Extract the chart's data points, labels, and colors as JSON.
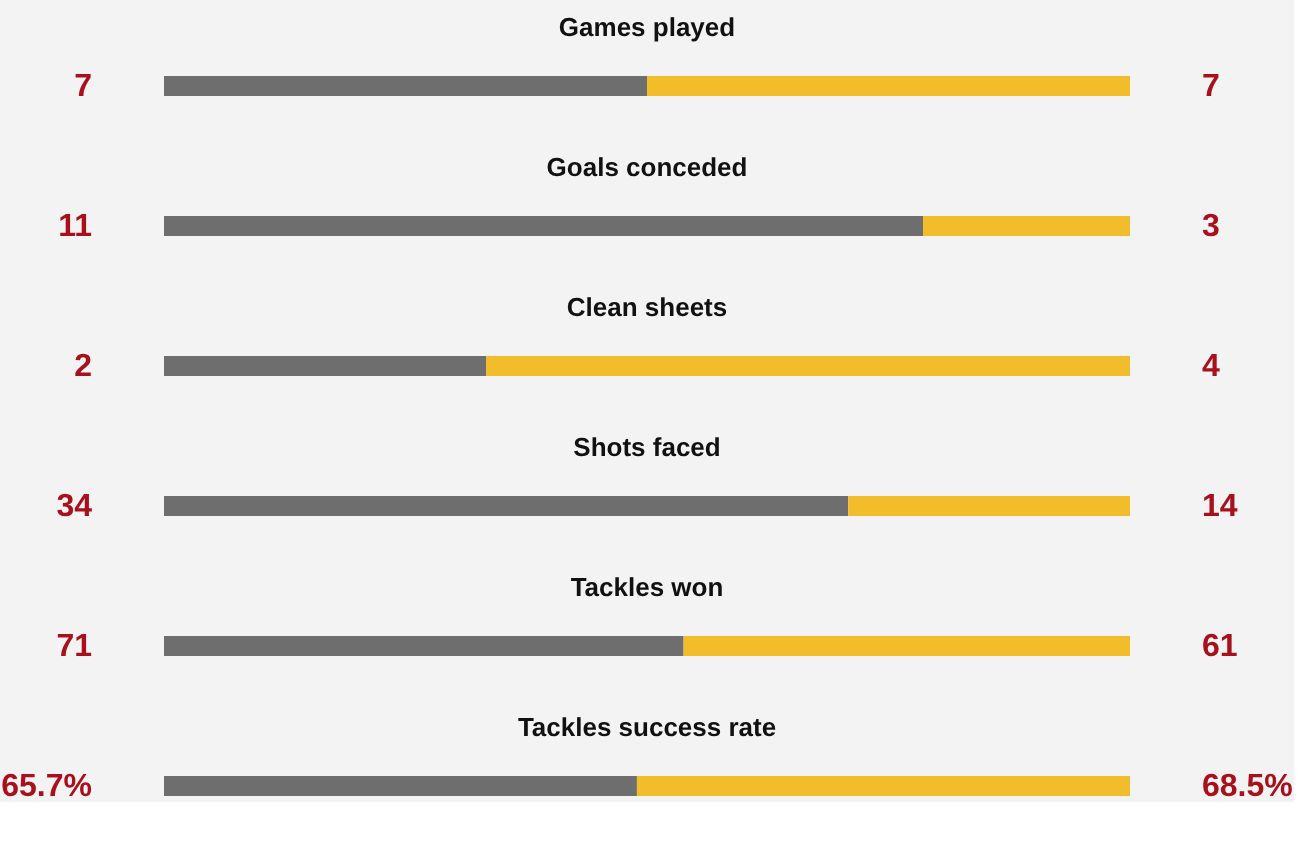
{
  "chart_data": [
    {
      "type": "bar",
      "title": "Games played",
      "orientation": "horizontal",
      "stacked": true,
      "categories": [
        null
      ],
      "series": [
        {
          "color": "#6e6e6e",
          "values": [
            7
          ],
          "value_labels": [
            "7"
          ]
        },
        {
          "color": "#f2bd2b",
          "values": [
            7
          ],
          "value_labels": [
            "7"
          ]
        }
      ],
      "tick_labels": false
    },
    {
      "type": "bar",
      "title": "Goals conceded",
      "orientation": "horizontal",
      "stacked": true,
      "categories": [
        null
      ],
      "series": [
        {
          "color": "#6e6e6e",
          "values": [
            11
          ],
          "value_labels": [
            "11"
          ]
        },
        {
          "color": "#f2bd2b",
          "values": [
            3
          ],
          "value_labels": [
            "3"
          ]
        }
      ],
      "tick_labels": false
    },
    {
      "type": "bar",
      "title": "Clean sheets",
      "orientation": "horizontal",
      "stacked": true,
      "categories": [
        null
      ],
      "series": [
        {
          "color": "#6e6e6e",
          "values": [
            2
          ],
          "value_labels": [
            "2"
          ]
        },
        {
          "color": "#f2bd2b",
          "values": [
            4
          ],
          "value_labels": [
            "4"
          ]
        }
      ],
      "tick_labels": false
    },
    {
      "type": "bar",
      "title": "Shots faced",
      "orientation": "horizontal",
      "stacked": true,
      "categories": [
        null
      ],
      "series": [
        {
          "color": "#6e6e6e",
          "values": [
            34
          ],
          "value_labels": [
            "34"
          ]
        },
        {
          "color": "#f2bd2b",
          "values": [
            14
          ],
          "value_labels": [
            "14"
          ]
        }
      ],
      "tick_labels": false
    },
    {
      "type": "bar",
      "title": "Tackles won",
      "orientation": "horizontal",
      "stacked": true,
      "categories": [
        null
      ],
      "series": [
        {
          "color": "#6e6e6e",
          "values": [
            71
          ],
          "value_labels": [
            "71"
          ]
        },
        {
          "color": "#f2bd2b",
          "values": [
            61
          ],
          "value_labels": [
            "61"
          ]
        }
      ],
      "tick_labels": false
    },
    {
      "type": "bar",
      "title": "Tackles success rate",
      "orientation": "horizontal",
      "stacked": true,
      "categories": [
        null
      ],
      "series": [
        {
          "color": "#6e6e6e",
          "values": [
            65.7
          ],
          "value_labels": [
            "65.7%"
          ]
        },
        {
          "color": "#f2bd2b",
          "values": [
            68.5
          ],
          "value_labels": [
            "68.5%"
          ]
        }
      ],
      "tick_labels": false
    }
  ]
}
